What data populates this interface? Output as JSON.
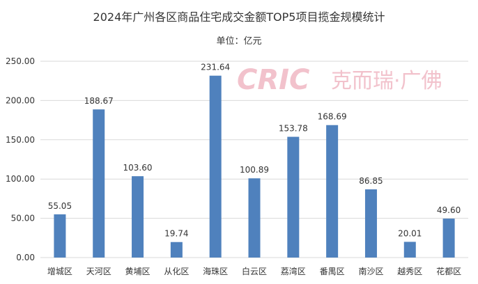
{
  "chart_data": {
    "type": "bar",
    "title": "2024年广州各区商品住宅成交金额TOP5项目揽金规模统计",
    "subtitle": "单位：亿元",
    "categories": [
      "增城区",
      "天河区",
      "黄埔区",
      "从化区",
      "海珠区",
      "白云区",
      "荔湾区",
      "番禺区",
      "南沙区",
      "越秀区",
      "花都区"
    ],
    "values": [
      55.05,
      188.67,
      103.6,
      19.74,
      231.64,
      100.89,
      153.78,
      168.69,
      86.85,
      20.01,
      49.6
    ],
    "value_labels": [
      "55.05",
      "188.67",
      "103.60",
      "19.74",
      "231.64",
      "100.89",
      "153.78",
      "168.69",
      "86.85",
      "20.01",
      "49.60"
    ],
    "ylim": [
      0,
      250
    ],
    "yticks": [
      "0.00",
      "50.00",
      "100.00",
      "150.00",
      "200.00",
      "250.00"
    ],
    "grid": true,
    "legend": "none",
    "bar_color": "#4f81bd",
    "grid_color": "#d9d9d9",
    "watermark": {
      "logo": "CRIC",
      "text": "克而瑞·广佛"
    }
  }
}
